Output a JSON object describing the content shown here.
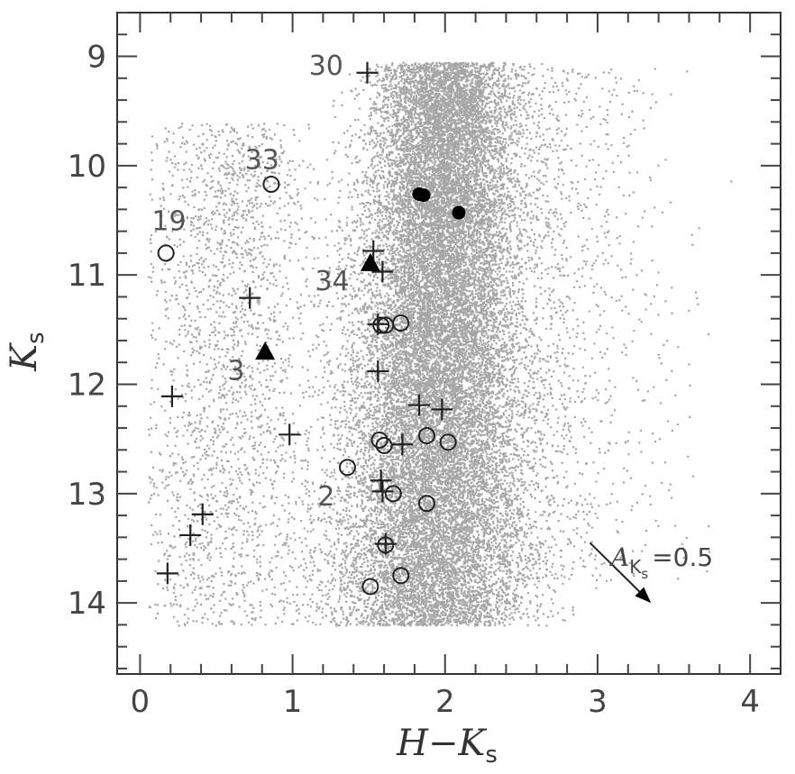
{
  "chart_data": {
    "type": "scatter",
    "xlabel": "H−K",
    "xlabel_sub": "s",
    "ylabel": "K",
    "ylabel_sub": "s",
    "xlim": [
      -0.15,
      4.2
    ],
    "ylim": [
      14.65,
      8.6
    ],
    "y_inverted": true,
    "x_ticks": [
      "0",
      "1",
      "2",
      "3",
      "4"
    ],
    "y_ticks": [
      "9",
      "10",
      "11",
      "12",
      "13",
      "14"
    ],
    "x_tick_values": [
      0,
      1,
      2,
      3,
      4
    ],
    "y_tick_values": [
      9,
      10,
      11,
      12,
      13,
      14
    ],
    "grid": false,
    "legend": "none",
    "background_population": {
      "marker": "dot",
      "color": "#a6a6a6",
      "description_free": true
    },
    "series": [
      {
        "marker": "plus",
        "color": "#222222",
        "points": [
          [
            1.49,
            9.15
          ],
          [
            1.53,
            10.78
          ],
          [
            1.59,
            10.97
          ],
          [
            0.72,
            11.21
          ],
          [
            1.56,
            11.45
          ],
          [
            1.56,
            11.88
          ],
          [
            0.21,
            12.11
          ],
          [
            1.83,
            12.19
          ],
          [
            1.98,
            12.23
          ],
          [
            0.98,
            12.46
          ],
          [
            1.72,
            12.55
          ],
          [
            1.58,
            12.88
          ],
          [
            1.59,
            12.98
          ],
          [
            0.41,
            13.19
          ],
          [
            0.33,
            13.38
          ],
          [
            0.18,
            13.73
          ],
          [
            1.61,
            13.46
          ]
        ]
      },
      {
        "marker": "circle",
        "color": "#222222",
        "points": [
          [
            0.86,
            10.17
          ],
          [
            0.17,
            10.8
          ],
          [
            1.58,
            11.46
          ],
          [
            1.61,
            11.46
          ],
          [
            1.71,
            11.44
          ],
          [
            1.57,
            12.51
          ],
          [
            1.88,
            12.47
          ],
          [
            2.02,
            12.53
          ],
          [
            1.6,
            12.56
          ],
          [
            1.36,
            12.76
          ],
          [
            1.66,
            13.0
          ],
          [
            1.88,
            13.09
          ],
          [
            1.61,
            13.47
          ],
          [
            1.71,
            13.75
          ],
          [
            1.51,
            13.85
          ]
        ]
      },
      {
        "marker": "filled-circle",
        "color": "#000000",
        "points": [
          [
            1.83,
            10.26
          ],
          [
            1.86,
            10.27
          ],
          [
            2.09,
            10.43
          ]
        ]
      },
      {
        "marker": "filled-triangle",
        "color": "#000000",
        "points": [
          [
            1.51,
            10.89
          ],
          [
            0.82,
            11.7
          ]
        ]
      }
    ],
    "annotations": [
      {
        "text": "30",
        "x": 1.22,
        "y": 9.08
      },
      {
        "text": "33",
        "x": 0.8,
        "y": 9.94
      },
      {
        "text": "19",
        "x": 0.19,
        "y": 10.5
      },
      {
        "text": "34",
        "x": 1.26,
        "y": 11.05
      },
      {
        "text": "3",
        "x": 0.63,
        "y": 11.87
      },
      {
        "text": "2",
        "x": 1.22,
        "y": 13.02
      }
    ],
    "extinction_vector": {
      "label_main": "A",
      "label_sub": "K",
      "label_subsub": "s",
      "label_value": "=0.5",
      "from": [
        2.95,
        13.45
      ],
      "to": [
        3.35,
        14.0
      ]
    }
  }
}
